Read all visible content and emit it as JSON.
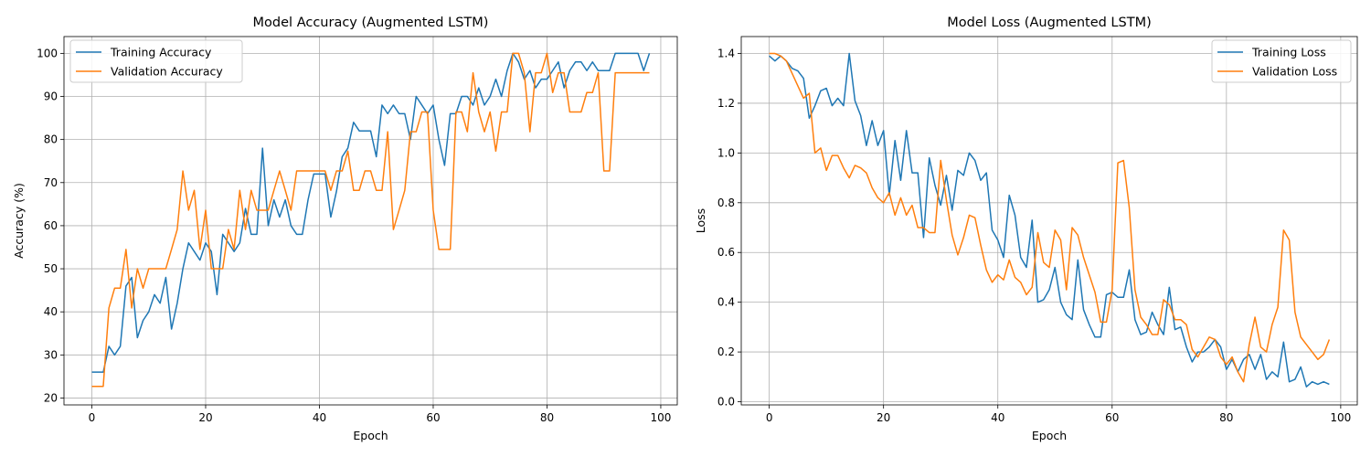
{
  "chart_data": [
    {
      "type": "line",
      "title": "Model Accuracy (Augmented LSTM)",
      "xlabel": "Epoch",
      "ylabel": "Accuracy (%)",
      "xlim": [
        -4.9,
        102.9
      ],
      "ylim": [
        18.4,
        103.9
      ],
      "xticks": [
        0,
        20,
        40,
        60,
        80,
        100
      ],
      "yticks": [
        20,
        30,
        40,
        50,
        60,
        70,
        80,
        90,
        100
      ],
      "grid": true,
      "legend_position": "top-left",
      "series": [
        {
          "name": "Training Accuracy",
          "color": "#1f77b4",
          "values": [
            26,
            26,
            26,
            32,
            30,
            32,
            46,
            48,
            34,
            38,
            40,
            44,
            42,
            48,
            36,
            42,
            50,
            56,
            54,
            52,
            56,
            54,
            44,
            58,
            56,
            54,
            56,
            64,
            58,
            58,
            78,
            60,
            66,
            62,
            66,
            60,
            58,
            58,
            66,
            72,
            72,
            72,
            62,
            68,
            76,
            78,
            84,
            82,
            82,
            82,
            76,
            88,
            86,
            88,
            86,
            86,
            80,
            90,
            88,
            86,
            88,
            80,
            74,
            86,
            86,
            90,
            90,
            88,
            92,
            88,
            90,
            94,
            90,
            96,
            100,
            98,
            94,
            96,
            92,
            94,
            94,
            96,
            98,
            92,
            96,
            98,
            98,
            96,
            98,
            96,
            96,
            96,
            100,
            100,
            100,
            100,
            100,
            96,
            100
          ]
        },
        {
          "name": "Validation Accuracy",
          "color": "#ff7f0e",
          "values": [
            22.7,
            22.7,
            22.7,
            40.9,
            45.5,
            45.5,
            54.5,
            40.9,
            50,
            45.5,
            50,
            50,
            50,
            50,
            54.5,
            59.1,
            72.7,
            63.6,
            68.2,
            54.5,
            63.6,
            50,
            50,
            50,
            59.1,
            54.5,
            68.2,
            59.1,
            68.2,
            63.6,
            63.6,
            63.6,
            68.2,
            72.7,
            68.2,
            63.6,
            72.7,
            72.7,
            72.7,
            72.7,
            72.7,
            72.7,
            68.2,
            72.7,
            72.7,
            77.3,
            68.2,
            68.2,
            72.7,
            72.7,
            68.2,
            68.2,
            81.8,
            59.1,
            63.6,
            68.2,
            81.8,
            81.8,
            86.4,
            86.4,
            63.6,
            54.5,
            54.5,
            54.5,
            86.4,
            86.4,
            81.8,
            95.5,
            86.4,
            81.8,
            86.4,
            77.3,
            86.4,
            86.4,
            100,
            100,
            95.5,
            81.8,
            95.5,
            95.5,
            100,
            90.9,
            95.5,
            95.5,
            86.4,
            86.4,
            86.4,
            90.9,
            90.9,
            95.5,
            72.7,
            72.7,
            95.5,
            95.5,
            95.5,
            95.5,
            95.5,
            95.5,
            95.5
          ]
        }
      ]
    },
    {
      "type": "line",
      "title": "Model Loss (Augmented LSTM)",
      "xlabel": "Epoch",
      "ylabel": "Loss",
      "xlim": [
        -4.9,
        102.9
      ],
      "ylim": [
        -0.0128,
        1.468
      ],
      "xticks": [
        0,
        20,
        40,
        60,
        80,
        100
      ],
      "yticks": [
        0.0,
        0.2,
        0.4,
        0.6,
        0.8,
        1.0,
        1.2,
        1.4
      ],
      "grid": true,
      "legend_position": "top-right",
      "series": [
        {
          "name": "Training Loss",
          "color": "#1f77b4",
          "values": [
            1.39,
            1.37,
            1.39,
            1.37,
            1.34,
            1.33,
            1.3,
            1.14,
            1.19,
            1.25,
            1.26,
            1.19,
            1.22,
            1.19,
            1.4,
            1.21,
            1.15,
            1.03,
            1.13,
            1.03,
            1.09,
            0.83,
            1.05,
            0.89,
            1.09,
            0.92,
            0.92,
            0.66,
            0.98,
            0.87,
            0.79,
            0.91,
            0.77,
            0.93,
            0.91,
            1.0,
            0.97,
            0.89,
            0.92,
            0.69,
            0.65,
            0.58,
            0.83,
            0.75,
            0.58,
            0.54,
            0.73,
            0.4,
            0.41,
            0.45,
            0.54,
            0.4,
            0.35,
            0.33,
            0.57,
            0.37,
            0.31,
            0.26,
            0.26,
            0.43,
            0.44,
            0.42,
            0.42,
            0.53,
            0.33,
            0.27,
            0.28,
            0.36,
            0.31,
            0.27,
            0.46,
            0.29,
            0.3,
            0.22,
            0.16,
            0.2,
            0.2,
            0.22,
            0.25,
            0.22,
            0.13,
            0.17,
            0.12,
            0.17,
            0.19,
            0.13,
            0.19,
            0.09,
            0.12,
            0.1,
            0.24,
            0.08,
            0.09,
            0.14,
            0.06,
            0.08,
            0.07,
            0.08,
            0.07
          ]
        },
        {
          "name": "Validation Loss",
          "color": "#ff7f0e",
          "values": [
            1.4,
            1.4,
            1.39,
            1.37,
            1.32,
            1.27,
            1.22,
            1.24,
            1.0,
            1.02,
            0.93,
            0.99,
            0.99,
            0.94,
            0.9,
            0.95,
            0.94,
            0.92,
            0.86,
            0.82,
            0.8,
            0.84,
            0.75,
            0.82,
            0.75,
            0.79,
            0.7,
            0.7,
            0.68,
            0.68,
            0.97,
            0.81,
            0.67,
            0.59,
            0.66,
            0.75,
            0.74,
            0.63,
            0.53,
            0.48,
            0.51,
            0.49,
            0.57,
            0.5,
            0.48,
            0.43,
            0.46,
            0.68,
            0.56,
            0.54,
            0.69,
            0.65,
            0.45,
            0.7,
            0.67,
            0.58,
            0.51,
            0.44,
            0.32,
            0.32,
            0.45,
            0.96,
            0.97,
            0.78,
            0.45,
            0.34,
            0.31,
            0.27,
            0.27,
            0.41,
            0.39,
            0.33,
            0.33,
            0.31,
            0.21,
            0.18,
            0.22,
            0.26,
            0.25,
            0.18,
            0.15,
            0.18,
            0.12,
            0.08,
            0.23,
            0.34,
            0.22,
            0.2,
            0.31,
            0.38,
            0.69,
            0.65,
            0.36,
            0.26,
            0.23,
            0.2,
            0.17,
            0.19,
            0.25
          ]
        }
      ]
    }
  ]
}
